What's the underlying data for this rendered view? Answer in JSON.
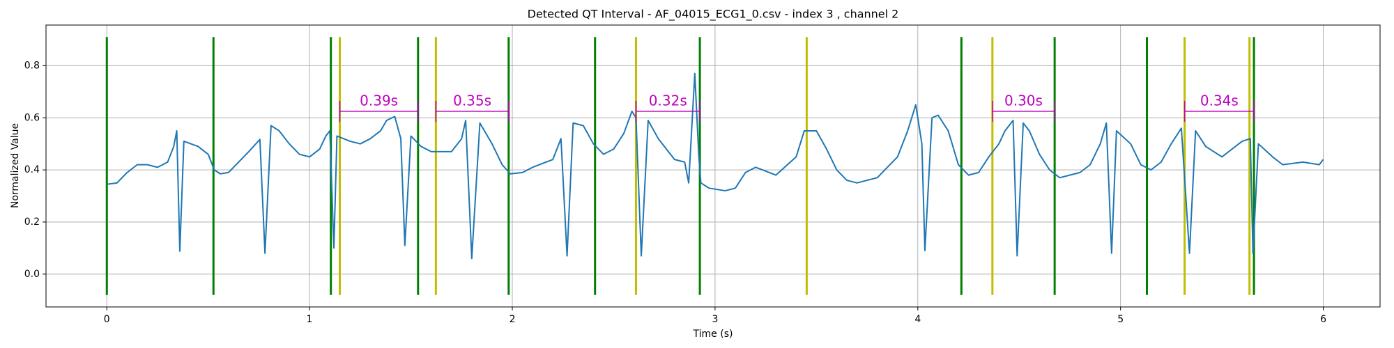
{
  "chart_data": {
    "type": "line",
    "title": "Detected QT Interval - AF_04015_ECG1_0.csv - index 3 , channel 2",
    "xlabel": "Time (s)",
    "ylabel": "Normalized Value",
    "xlim": [
      -0.3,
      6.28
    ],
    "ylim": [
      -0.126,
      0.956
    ],
    "xticks": [
      0,
      1,
      2,
      3,
      4,
      5,
      6
    ],
    "yticks": [
      {
        "value": 0,
        "label": "0.0"
      },
      0.2,
      0.4,
      0.6,
      0.8
    ],
    "grid": true,
    "x": [
      0,
      0.05,
      0.1,
      0.15,
      0.2,
      0.25,
      0.3,
      0.33,
      0.345,
      0.36,
      0.38,
      0.45,
      0.5,
      0.53,
      0.56,
      0.6,
      0.65,
      0.7,
      0.755,
      0.78,
      0.81,
      0.85,
      0.9,
      0.95,
      1.0,
      1.05,
      1.08,
      1.1,
      1.12,
      1.135,
      1.2,
      1.25,
      1.3,
      1.35,
      1.38,
      1.42,
      1.45,
      1.47,
      1.5,
      1.55,
      1.6,
      1.7,
      1.75,
      1.77,
      1.8,
      1.84,
      1.9,
      1.95,
      1.99,
      2.05,
      2.1,
      2.2,
      2.24,
      2.27,
      2.3,
      2.35,
      2.4,
      2.45,
      2.5,
      2.55,
      2.59,
      2.61,
      2.636,
      2.67,
      2.72,
      2.77,
      2.8,
      2.85,
      2.87,
      2.9,
      2.92,
      2.93,
      2.97,
      3.05,
      3.1,
      3.15,
      3.2,
      3.3,
      3.4,
      3.44,
      3.5,
      3.55,
      3.6,
      3.65,
      3.7,
      3.8,
      3.9,
      3.95,
      3.99,
      4.02,
      4.035,
      4.07,
      4.1,
      4.15,
      4.2,
      4.25,
      4.3,
      4.35,
      4.4,
      4.43,
      4.47,
      4.49,
      4.52,
      4.55,
      4.6,
      4.65,
      4.7,
      4.8,
      4.85,
      4.9,
      4.93,
      4.956,
      4.98,
      5.05,
      5.1,
      5.15,
      5.2,
      5.25,
      5.3,
      5.34,
      5.37,
      5.42,
      5.5,
      5.6,
      5.64,
      5.653,
      5.68,
      5.75,
      5.8,
      5.9,
      5.98,
      6.0
    ],
    "series": [
      {
        "color": "#1f77b4",
        "values": [
          0.345,
          0.35,
          0.39,
          0.42,
          0.42,
          0.41,
          0.43,
          0.49,
          0.55,
          0.088,
          0.51,
          0.49,
          0.46,
          0.4,
          0.385,
          0.39,
          0.43,
          0.47,
          0.517,
          0.08,
          0.57,
          0.55,
          0.5,
          0.46,
          0.45,
          0.48,
          0.53,
          0.55,
          0.1,
          0.53,
          0.51,
          0.5,
          0.52,
          0.55,
          0.59,
          0.605,
          0.52,
          0.11,
          0.53,
          0.49,
          0.47,
          0.47,
          0.52,
          0.59,
          0.06,
          0.58,
          0.5,
          0.42,
          0.385,
          0.39,
          0.41,
          0.44,
          0.52,
          0.07,
          0.58,
          0.57,
          0.5,
          0.46,
          0.48,
          0.54,
          0.625,
          0.6,
          0.07,
          0.59,
          0.52,
          0.47,
          0.44,
          0.43,
          0.35,
          0.77,
          0.45,
          0.35,
          0.33,
          0.32,
          0.33,
          0.39,
          0.41,
          0.38,
          0.45,
          0.55,
          0.55,
          0.48,
          0.4,
          0.36,
          0.35,
          0.37,
          0.45,
          0.55,
          0.65,
          0.5,
          0.09,
          0.6,
          0.61,
          0.55,
          0.42,
          0.38,
          0.39,
          0.45,
          0.5,
          0.55,
          0.59,
          0.07,
          0.58,
          0.55,
          0.46,
          0.4,
          0.37,
          0.39,
          0.42,
          0.5,
          0.58,
          0.08,
          0.55,
          0.5,
          0.42,
          0.4,
          0.43,
          0.5,
          0.56,
          0.08,
          0.55,
          0.49,
          0.45,
          0.51,
          0.52,
          0.08,
          0.5,
          0.45,
          0.42,
          0.43,
          0.42,
          0.44
        ]
      }
    ],
    "vlines": [
      {
        "color": "#008000",
        "ymin": -0.08,
        "ymax": 0.91,
        "x": [
          0,
          0.526,
          1.105,
          1.535,
          1.982,
          2.408,
          2.925,
          4.215,
          4.675,
          5.13,
          5.658
        ]
      },
      {
        "color": "#bfbf00",
        "ymin": -0.08,
        "ymax": 0.91,
        "x": [
          1.149,
          1.623,
          2.61,
          3.452,
          4.368,
          5.316,
          5.636
        ]
      }
    ],
    "annotations": {
      "color": "#bf00bf",
      "y": 0.625,
      "tick": 0.04,
      "items": [
        {
          "text": "0.39s",
          "start": 1.149,
          "end": 1.535
        },
        {
          "text": "0.35s",
          "start": 1.623,
          "end": 1.982
        },
        {
          "text": "0.32s",
          "start": 2.61,
          "end": 2.925
        },
        {
          "text": "0.30s",
          "start": 4.368,
          "end": 4.675
        },
        {
          "text": "0.34s",
          "start": 5.316,
          "end": 5.658
        }
      ]
    }
  }
}
